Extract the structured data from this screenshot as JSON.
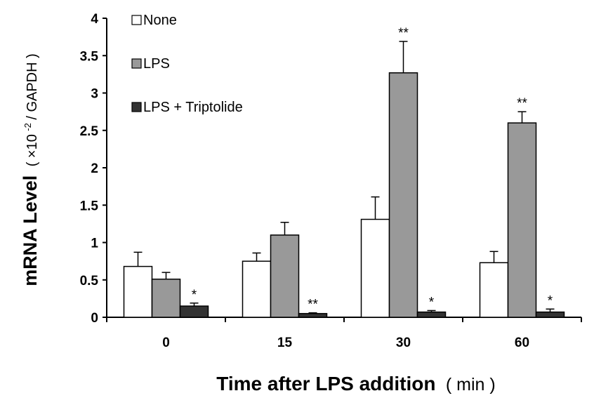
{
  "chart_data": {
    "type": "bar",
    "xlabel_main": "Time after LPS addition",
    "xlabel_unit": "( min )",
    "ylabel_main": "mRNA Level",
    "ylabel_unit_pre": "( ×10",
    "ylabel_unit_sup": "-2",
    "ylabel_unit_post": " / GAPDH )",
    "categories": [
      "0",
      "15",
      "30",
      "60"
    ],
    "ylim": [
      0,
      4
    ],
    "yticks": [
      0,
      0.5,
      1,
      1.5,
      2,
      2.5,
      3,
      3.5,
      4
    ],
    "yticklabels": [
      "0",
      "0.5",
      "1",
      "1.5",
      "2",
      "2.5",
      "3",
      "3.5",
      "4"
    ],
    "legend_position": "top-left",
    "series": [
      {
        "name": "None",
        "color": "#ffffff",
        "values": [
          0.68,
          0.75,
          1.31,
          0.73
        ],
        "errors": [
          0.19,
          0.11,
          0.3,
          0.15
        ],
        "sig": [
          "",
          "",
          "",
          ""
        ]
      },
      {
        "name": "LPS",
        "color": "#999999",
        "values": [
          0.51,
          1.1,
          3.27,
          2.6
        ],
        "errors": [
          0.09,
          0.17,
          0.42,
          0.15
        ],
        "sig": [
          "",
          "",
          "**",
          "**"
        ]
      },
      {
        "name": "LPS + Triptolide",
        "color": "#333333",
        "values": [
          0.15,
          0.05,
          0.07,
          0.07
        ],
        "errors": [
          0.04,
          0.01,
          0.02,
          0.04
        ],
        "sig": [
          "*",
          "**",
          "*",
          "*"
        ]
      }
    ]
  }
}
